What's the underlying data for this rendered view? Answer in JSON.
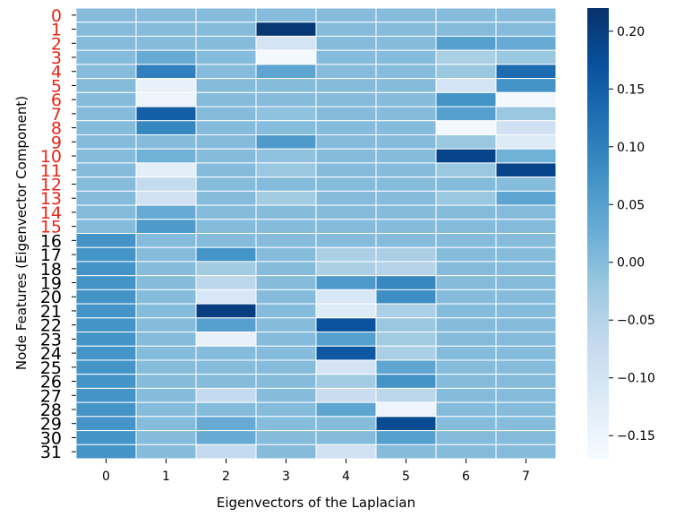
{
  "chart_data": {
    "type": "heatmap",
    "xlabel": "Eigenvectors of the Laplacian",
    "ylabel": "Node Features (Eigenvector Component)",
    "x_categories": [
      "0",
      "1",
      "2",
      "3",
      "4",
      "5",
      "6",
      "7"
    ],
    "y_categories": [
      "0",
      "1",
      "2",
      "3",
      "4",
      "5",
      "6",
      "7",
      "8",
      "9",
      "10",
      "11",
      "12",
      "13",
      "14",
      "15",
      "16",
      "17",
      "18",
      "19",
      "20",
      "21",
      "22",
      "23",
      "24",
      "25",
      "26",
      "27",
      "28",
      "29",
      "30",
      "31"
    ],
    "y_label_colors": [
      "#e8261b",
      "#e8261b",
      "#e8261b",
      "#e8261b",
      "#e8261b",
      "#e8261b",
      "#e8261b",
      "#e8261b",
      "#e8261b",
      "#e8261b",
      "#e8261b",
      "#e8261b",
      "#e8261b",
      "#e8261b",
      "#e8261b",
      "#e8261b",
      "#000000",
      "#000000",
      "#000000",
      "#000000",
      "#000000",
      "#000000",
      "#000000",
      "#000000",
      "#000000",
      "#000000",
      "#000000",
      "#000000",
      "#000000",
      "#000000",
      "#000000",
      "#000000"
    ],
    "colormap": "Blues",
    "vmin": -0.17,
    "vmax": 0.22,
    "colorbar_ticks": [
      "0.20",
      "0.15",
      "0.10",
      "0.05",
      "0.00",
      "−0.05",
      "−0.10",
      "−0.15"
    ],
    "colorbar_tick_values": [
      0.2,
      0.15,
      0.1,
      0.05,
      0.0,
      -0.05,
      -0.1,
      -0.15
    ],
    "values": [
      [
        0.0,
        0.0,
        0.0,
        0.0,
        0.0,
        0.0,
        0.0,
        0.0
      ],
      [
        0.0,
        0.0,
        0.0,
        0.21,
        0.0,
        0.0,
        0.0,
        0.0
      ],
      [
        0.0,
        0.0,
        0.0,
        -0.1,
        0.0,
        0.0,
        0.05,
        0.03
      ],
      [
        0.0,
        0.03,
        0.0,
        -0.16,
        0.0,
        0.0,
        -0.04,
        -0.02
      ],
      [
        0.0,
        0.1,
        0.0,
        0.04,
        0.0,
        0.0,
        -0.02,
        0.13
      ],
      [
        0.0,
        -0.14,
        0.0,
        0.0,
        0.0,
        0.0,
        -0.1,
        0.07
      ],
      [
        0.0,
        -0.15,
        0.0,
        0.0,
        0.0,
        0.0,
        0.07,
        -0.16
      ],
      [
        0.0,
        0.15,
        0.0,
        -0.01,
        0.0,
        0.0,
        0.05,
        -0.02
      ],
      [
        0.0,
        0.09,
        0.0,
        0.0,
        0.0,
        0.0,
        -0.16,
        -0.09
      ],
      [
        0.0,
        0.0,
        0.0,
        0.06,
        0.0,
        0.0,
        -0.02,
        -0.12
      ],
      [
        0.0,
        0.02,
        0.0,
        -0.01,
        0.0,
        0.0,
        0.19,
        0.02
      ],
      [
        0.0,
        -0.13,
        0.0,
        -0.02,
        0.0,
        0.0,
        -0.02,
        0.19
      ],
      [
        0.0,
        -0.07,
        0.0,
        0.0,
        0.0,
        0.0,
        0.0,
        0.0
      ],
      [
        0.0,
        -0.09,
        0.0,
        -0.03,
        0.0,
        0.0,
        -0.02,
        0.04
      ],
      [
        0.0,
        0.03,
        0.0,
        0.0,
        0.0,
        0.0,
        0.0,
        0.0
      ],
      [
        0.0,
        0.06,
        0.0,
        0.0,
        0.0,
        0.0,
        0.0,
        0.0
      ],
      [
        0.07,
        0.0,
        0.0,
        0.0,
        0.0,
        0.0,
        0.0,
        0.0
      ],
      [
        0.07,
        0.0,
        0.07,
        0.0,
        -0.04,
        -0.04,
        0.0,
        0.0
      ],
      [
        0.07,
        0.0,
        -0.03,
        0.0,
        -0.04,
        -0.05,
        0.0,
        0.0
      ],
      [
        0.07,
        0.0,
        -0.06,
        0.0,
        0.06,
        0.09,
        0.0,
        0.0
      ],
      [
        0.07,
        0.0,
        -0.11,
        0.0,
        -0.11,
        0.08,
        0.0,
        0.0
      ],
      [
        0.07,
        0.0,
        0.2,
        0.0,
        -0.12,
        -0.04,
        0.0,
        0.0
      ],
      [
        0.07,
        0.0,
        0.05,
        0.0,
        0.17,
        -0.02,
        0.0,
        0.0
      ],
      [
        0.07,
        0.0,
        -0.14,
        0.0,
        0.05,
        -0.03,
        0.0,
        0.0
      ],
      [
        0.07,
        0.0,
        0.0,
        0.0,
        0.16,
        -0.04,
        0.0,
        0.0
      ],
      [
        0.07,
        0.0,
        0.0,
        0.0,
        -0.1,
        0.04,
        0.0,
        0.0
      ],
      [
        0.07,
        0.0,
        0.0,
        0.0,
        -0.03,
        0.07,
        0.0,
        0.0
      ],
      [
        0.07,
        0.0,
        -0.07,
        0.0,
        -0.08,
        -0.06,
        0.0,
        0.0
      ],
      [
        0.07,
        0.0,
        0.0,
        0.0,
        0.04,
        -0.15,
        0.0,
        0.0
      ],
      [
        0.07,
        0.0,
        0.03,
        0.0,
        0.0,
        0.18,
        0.0,
        0.0
      ],
      [
        0.07,
        0.0,
        0.03,
        0.0,
        0.0,
        0.05,
        0.0,
        0.0
      ],
      [
        0.07,
        0.0,
        -0.07,
        0.0,
        -0.09,
        0.0,
        0.0,
        0.0
      ]
    ]
  }
}
